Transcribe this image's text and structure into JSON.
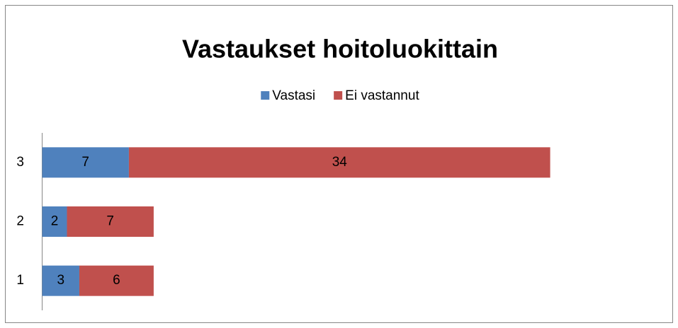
{
  "chart_data": {
    "type": "stacked-barh",
    "title": "Vastaukset hoitoluokittain",
    "categories": [
      "1",
      "2",
      "3"
    ],
    "series": [
      {
        "name": "Vastasi",
        "color": "#4f81bd",
        "values": [
          3,
          2,
          7
        ]
      },
      {
        "name": "Ei vastannut",
        "color": "#c0504d",
        "values": [
          6,
          7,
          34
        ]
      }
    ],
    "xlim": [
      0,
      50
    ],
    "legend": "top"
  }
}
